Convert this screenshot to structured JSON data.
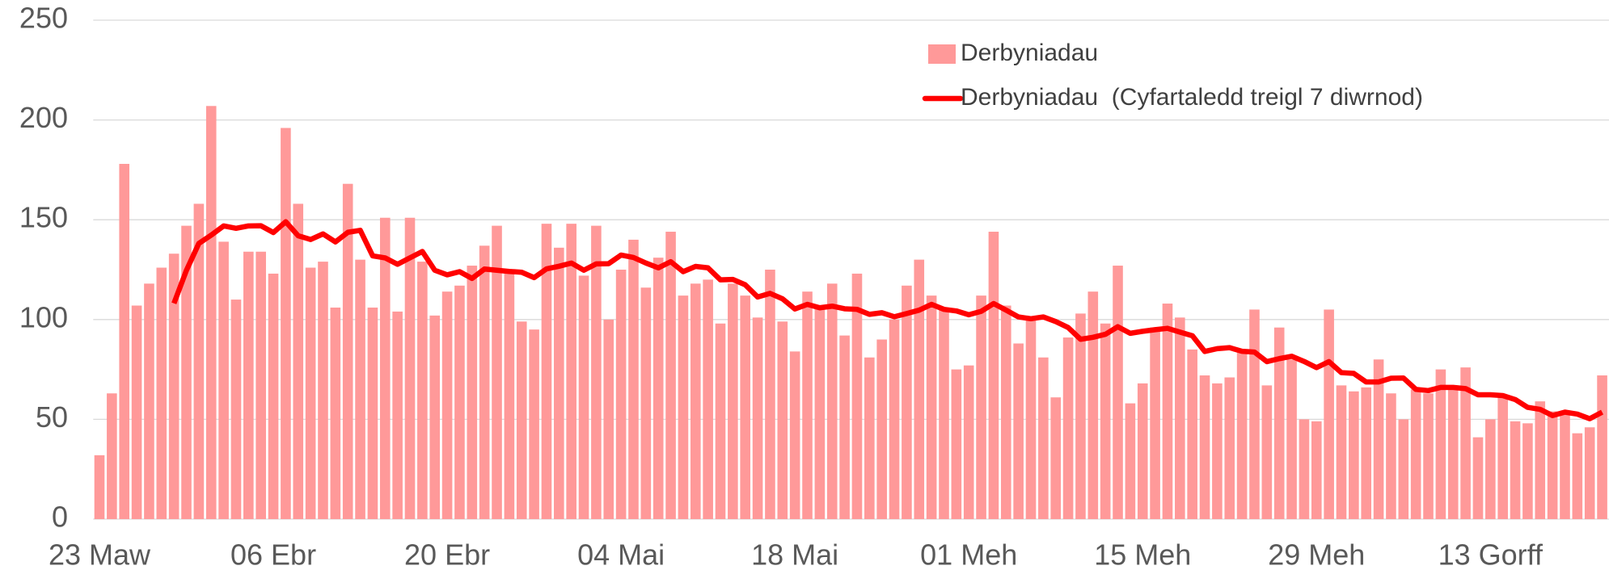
{
  "chart_data": {
    "type": "bar",
    "categories": [
      "23 Maw",
      null,
      null,
      null,
      null,
      null,
      null,
      null,
      null,
      null,
      null,
      null,
      null,
      null,
      "06 Ebr",
      null,
      null,
      null,
      null,
      null,
      null,
      null,
      null,
      null,
      null,
      null,
      null,
      null,
      "20 Ebr",
      null,
      null,
      null,
      null,
      null,
      null,
      null,
      null,
      null,
      null,
      null,
      null,
      null,
      "04 Mai",
      null,
      null,
      null,
      null,
      null,
      null,
      null,
      null,
      null,
      null,
      null,
      null,
      null,
      "18 Mai",
      null,
      null,
      null,
      null,
      null,
      null,
      null,
      null,
      null,
      null,
      null,
      null,
      null,
      "01 Meh",
      null,
      null,
      null,
      null,
      null,
      null,
      null,
      null,
      null,
      null,
      null,
      null,
      null,
      "15 Meh",
      null,
      null,
      null,
      null,
      null,
      null,
      null,
      null,
      null,
      null,
      null,
      null,
      null,
      "29 Meh",
      null,
      null,
      null,
      null,
      null,
      null,
      null,
      null,
      null,
      null,
      null,
      null,
      null,
      "13 Gorff",
      null,
      null,
      null,
      null,
      null,
      null,
      null,
      null,
      null
    ],
    "series": [
      {
        "name": "Derbyniadau",
        "type": "bar",
        "color": "#ff9999",
        "values": [
          32,
          63,
          178,
          107,
          118,
          126,
          133,
          147,
          158,
          207,
          139,
          110,
          134,
          134,
          123,
          196,
          158,
          126,
          129,
          106,
          168,
          130,
          106,
          151,
          104,
          151,
          129,
          102,
          114,
          117,
          127,
          137,
          147,
          125,
          99,
          95,
          148,
          136,
          148,
          122,
          147,
          100,
          125,
          140,
          116,
          131,
          144,
          112,
          118,
          120,
          98,
          118,
          112,
          101,
          125,
          99,
          84,
          114,
          106,
          118,
          92,
          123,
          81,
          90,
          100,
          117,
          130,
          112,
          106,
          75,
          77,
          112,
          144,
          107,
          88,
          100,
          81,
          61,
          91,
          103,
          114,
          98,
          127,
          58,
          68,
          96,
          108,
          101,
          85,
          72,
          68,
          71,
          84,
          105,
          67,
          96,
          80,
          50,
          49,
          105,
          67,
          64,
          66,
          80,
          63,
          50,
          65,
          63,
          75,
          66,
          76,
          41,
          50,
          62,
          49,
          48,
          59,
          54,
          53,
          43,
          46,
          72
        ]
      },
      {
        "name": "Derbyniadau  (Cyfartaledd treigl 7 diwrnod)",
        "type": "line",
        "color": "#ff0000",
        "values": [
          null,
          null,
          null,
          null,
          null,
          null,
          108.1,
          124.6,
          138.1,
          142.3,
          146.9,
          145.7,
          146.9,
          147,
          143.6,
          149,
          142,
          140.1,
          142.9,
          138.9,
          143.7,
          144.7,
          131.9,
          130.9,
          127.7,
          130.9,
          134.1,
          124.7,
          122.4,
          124,
          120.6,
          125.3,
          124.7,
          124.1,
          123.7,
          121,
          125.4,
          126.7,
          128.3,
          124.7,
          127.9,
          128,
          132.3,
          131.1,
          128.3,
          125.9,
          129,
          124,
          126.6,
          125.9,
          119.9,
          120.1,
          117.4,
          111.3,
          113.1,
          110.4,
          105.3,
          107.6,
          105.9,
          106.7,
          105.4,
          105.1,
          102.6,
          103.4,
          101.4,
          103,
          104.7,
          107.6,
          105.1,
          104.3,
          102.4,
          104.1,
          108,
          104.7,
          101.3,
          100.4,
          101.3,
          99,
          96,
          90.1,
          91.1,
          92.6,
          96.4,
          93.1,
          94.1,
          94.9,
          95.6,
          93.7,
          91.9,
          84,
          85.4,
          85.9,
          84.1,
          83.7,
          78.9,
          80.4,
          81.6,
          79,
          75.9,
          78.9,
          73.4,
          73,
          68.7,
          68.7,
          70.6,
          70.7,
          65,
          64.4,
          66,
          66,
          65.4,
          62.3,
          62.3,
          61.9,
          59.9,
          56,
          55,
          51.9,
          53.6,
          52.6,
          50.3,
          53.6
        ]
      }
    ],
    "ylim": [
      0,
      250
    ],
    "yticks": [
      0,
      50,
      100,
      150,
      200,
      250
    ],
    "grid": true,
    "legend": "top-right"
  }
}
